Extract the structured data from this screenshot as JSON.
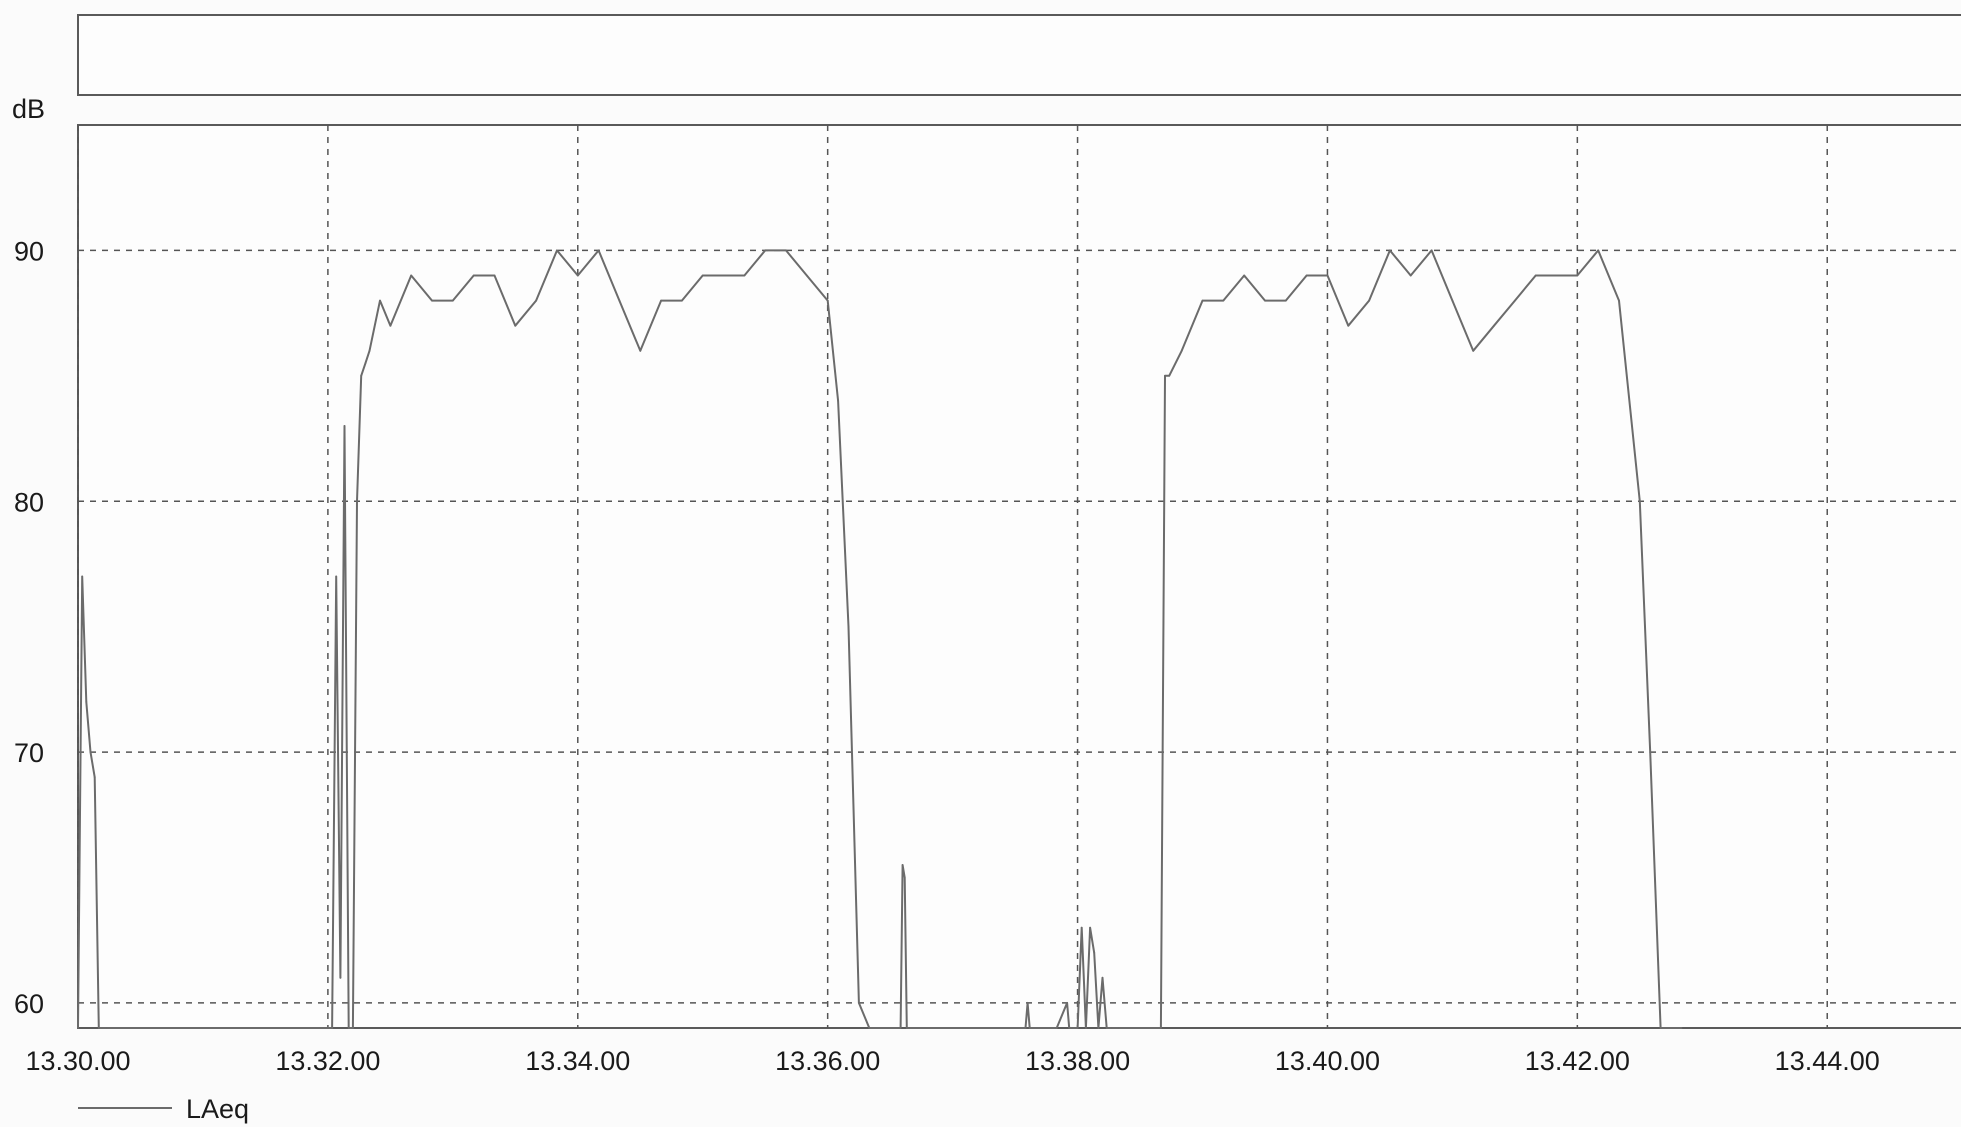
{
  "chart_data": {
    "type": "line",
    "title": "",
    "xlabel": "",
    "ylabel": "dB",
    "ylim": [
      59,
      95
    ],
    "xlim": [
      "13.30.00",
      "13.45.10"
    ],
    "grid": true,
    "legend_position": "bottom-left",
    "yticks": [
      60,
      70,
      80,
      90
    ],
    "xticks": [
      "13.30.00",
      "13.32.00",
      "13.34.00",
      "13.36.00",
      "13.38.00",
      "13.40.00",
      "13.42.00",
      "13.44.00"
    ],
    "series": [
      {
        "name": "LAeq",
        "color": "#6b6b6b",
        "x": [
          "13.30.00",
          "13.30.02",
          "13.30.04",
          "13.30.06",
          "13.30.08",
          "13.30.10",
          "13.30.12",
          "13.30.14",
          "13.32.02",
          "13.32.04",
          "13.32.06",
          "13.32.08",
          "13.32.10",
          "13.32.12",
          "13.32.14",
          "13.32.16",
          "13.32.18",
          "13.32.20",
          "13.32.25",
          "13.32.30",
          "13.32.40",
          "13.32.50",
          "13.33.00",
          "13.33.10",
          "13.33.20",
          "13.33.30",
          "13.33.40",
          "13.33.50",
          "13.34.00",
          "13.34.10",
          "13.34.20",
          "13.34.30",
          "13.34.40",
          "13.34.50",
          "13.35.00",
          "13.35.10",
          "13.35.20",
          "13.35.30",
          "13.35.40",
          "13.35.50",
          "13.36.00",
          "13.36.05",
          "13.36.10",
          "13.36.15",
          "13.36.20",
          "13.36.35",
          "13.36.36",
          "13.36.37",
          "13.36.38",
          "13.37.35",
          "13.37.36",
          "13.37.37",
          "13.37.50",
          "13.37.55",
          "13.37.56",
          "13.37.57",
          "13.38.00",
          "13.38.02",
          "13.38.04",
          "13.38.06",
          "13.38.08",
          "13.38.10",
          "13.38.12",
          "13.38.14",
          "13.38.16",
          "13.38.18",
          "13.38.20",
          "13.38.40",
          "13.38.42",
          "13.38.44",
          "13.38.50",
          "13.39.00",
          "13.39.10",
          "13.39.20",
          "13.39.30",
          "13.39.40",
          "13.39.50",
          "13.40.00",
          "13.40.10",
          "13.40.20",
          "13.40.30",
          "13.40.40",
          "13.40.50",
          "13.41.00",
          "13.41.10",
          "13.41.20",
          "13.41.30",
          "13.41.40",
          "13.41.50",
          "13.42.00",
          "13.42.10",
          "13.42.20",
          "13.42.30",
          "13.42.35",
          "13.42.40",
          "13.42.45",
          "13.42.50"
        ],
        "values": [
          59,
          77,
          72,
          70,
          69,
          59,
          59,
          59,
          59,
          77,
          61,
          83,
          59,
          59,
          80,
          85,
          85.5,
          86,
          88,
          87,
          89,
          88,
          88,
          89,
          89,
          87,
          88,
          90,
          89,
          90,
          88,
          86,
          88,
          88,
          89,
          89,
          89,
          90,
          90,
          89,
          88,
          84,
          75,
          60,
          59,
          59,
          65.5,
          65,
          59,
          59,
          60,
          59,
          59,
          60,
          59,
          59,
          59,
          63,
          59,
          63,
          62,
          59,
          61,
          59,
          59,
          59,
          59,
          59,
          85,
          85,
          86,
          88,
          88,
          89,
          88,
          88,
          89,
          89,
          87,
          88,
          90,
          89,
          90,
          88,
          86,
          87,
          88,
          89,
          89,
          89,
          90,
          88,
          80,
          70,
          59,
          59,
          59
        ]
      }
    ]
  }
}
